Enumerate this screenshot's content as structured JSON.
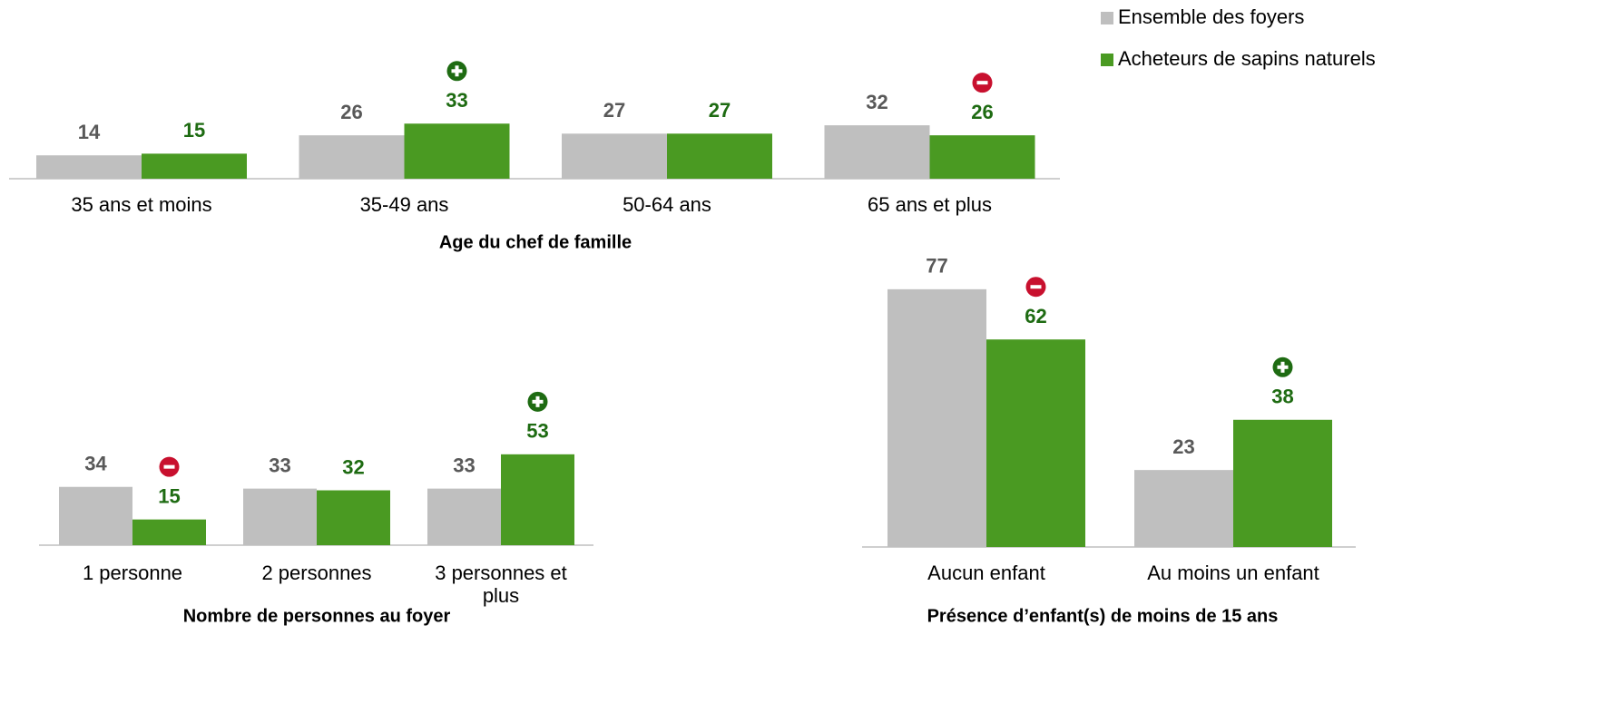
{
  "chart_data": [
    {
      "type": "bar",
      "axis_title": "Age du chef de famille",
      "categories": [
        "35 ans et moins",
        "35-49 ans",
        "50-64 ans",
        "65 ans et plus"
      ],
      "series": [
        {
          "name": "Ensemble des foyers",
          "color": "#bfbfbf",
          "label_color": "#595959",
          "values": [
            14,
            26,
            27,
            32
          ]
        },
        {
          "name": "Acheteurs de sapins naturels",
          "color": "#4a9a22",
          "label_color": "#1e6b12",
          "values": [
            15,
            33,
            27,
            26
          ],
          "markers": [
            null,
            "+",
            null,
            "-"
          ]
        }
      ]
    },
    {
      "type": "bar",
      "axis_title": "Nombre de personnes au foyer",
      "categories": [
        "1 personne",
        "2 personnes",
        "3 personnes et plus"
      ],
      "series": [
        {
          "color": "#bfbfbf",
          "label_color": "#595959",
          "values": [
            34,
            33,
            33
          ]
        },
        {
          "color": "#4a9a22",
          "label_color": "#1e6b12",
          "values": [
            15,
            32,
            53
          ],
          "markers": [
            "-",
            null,
            "+"
          ]
        }
      ]
    },
    {
      "type": "bar",
      "axis_title": "Présence d’enfant(s) de moins de 15 ans",
      "categories": [
        "Aucun enfant",
        "Au moins un enfant"
      ],
      "series": [
        {
          "color": "#bfbfbf",
          "label_color": "#595959",
          "values": [
            77,
            23
          ]
        },
        {
          "color": "#4a9a22",
          "label_color": "#1e6b12",
          "values": [
            62,
            38
          ],
          "markers": [
            "-",
            "+"
          ]
        }
      ]
    }
  ]
}
